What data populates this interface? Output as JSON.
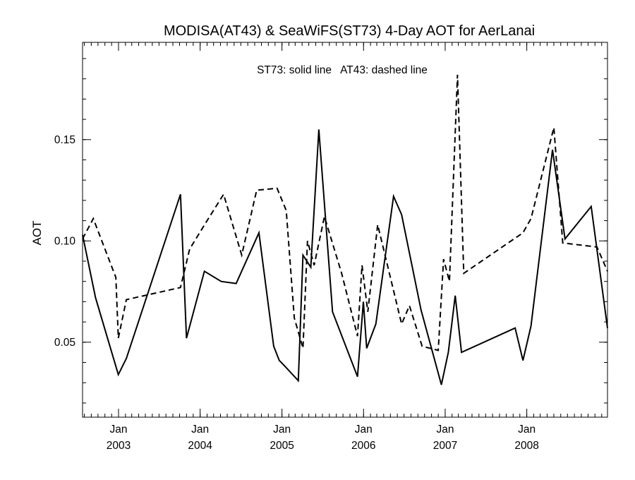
{
  "chart_data": {
    "type": "line",
    "title": "MODISA(AT43) & SeaWiFS(ST73) 4-Day AOT for AerLanai",
    "ylabel": "AOT",
    "xlabel": "",
    "annotation": "ST73: solid line   AT43: dashed line",
    "xlim": [
      "2002-07-24",
      "2008-12-27"
    ],
    "ylim": [
      0.013,
      0.198
    ],
    "y_ticks": [
      {
        "value": 0.05,
        "label": "0.05"
      },
      {
        "value": 0.1,
        "label": "0.10"
      },
      {
        "value": 0.15,
        "label": "0.15"
      }
    ],
    "y_minor_step": 0.01,
    "x_ticks": [
      {
        "date": "2003-01-01",
        "month": "Jan",
        "year": "2003"
      },
      {
        "date": "2004-01-01",
        "month": "Jan",
        "year": "2004"
      },
      {
        "date": "2005-01-01",
        "month": "Jan",
        "year": "2005"
      },
      {
        "date": "2006-01-01",
        "month": "Jan",
        "year": "2006"
      },
      {
        "date": "2007-01-01",
        "month": "Jan",
        "year": "2007"
      },
      {
        "date": "2008-01-01",
        "month": "Jan",
        "year": "2008"
      }
    ],
    "series": [
      {
        "key": "ST73",
        "style": "solid",
        "color": "#000000",
        "points": [
          [
            "2002-07-24",
            0.103
          ],
          [
            "2002-09-20",
            0.072
          ],
          [
            "2002-12-31",
            0.034
          ],
          [
            "2003-02-05",
            0.042
          ],
          [
            "2003-10-05",
            0.123
          ],
          [
            "2003-11-01",
            0.052
          ],
          [
            "2004-01-20",
            0.085
          ],
          [
            "2004-04-04",
            0.08
          ],
          [
            "2004-06-10",
            0.079
          ],
          [
            "2004-09-20",
            0.104
          ],
          [
            "2004-11-25",
            0.048
          ],
          [
            "2004-12-20",
            0.041
          ],
          [
            "2005-01-15",
            0.038
          ],
          [
            "2005-03-15",
            0.031
          ],
          [
            "2005-04-05",
            0.093
          ],
          [
            "2005-05-10",
            0.087
          ],
          [
            "2005-06-15",
            0.155
          ],
          [
            "2005-08-15",
            0.065
          ],
          [
            "2005-12-05",
            0.033
          ],
          [
            "2005-12-31",
            0.07
          ],
          [
            "2006-01-15",
            0.047
          ],
          [
            "2006-02-25",
            0.059
          ],
          [
            "2006-05-15",
            0.122
          ],
          [
            "2006-06-20",
            0.113
          ],
          [
            "2006-09-15",
            0.066
          ],
          [
            "2006-12-15",
            0.029
          ],
          [
            "2007-01-15",
            0.045
          ],
          [
            "2007-02-15",
            0.073
          ],
          [
            "2007-03-15",
            0.045
          ],
          [
            "2007-11-10",
            0.057
          ],
          [
            "2007-12-15",
            0.041
          ],
          [
            "2008-01-20",
            0.058
          ],
          [
            "2008-04-25",
            0.145
          ],
          [
            "2008-06-20",
            0.101
          ],
          [
            "2008-10-15",
            0.117
          ],
          [
            "2008-12-27",
            0.057
          ]
        ]
      },
      {
        "key": "AT43",
        "style": "dashed",
        "color": "#000000",
        "points": [
          [
            "2002-07-24",
            0.101
          ],
          [
            "2002-09-10",
            0.111
          ],
          [
            "2002-12-20",
            0.082
          ],
          [
            "2002-12-31",
            0.052
          ],
          [
            "2003-02-05",
            0.071
          ],
          [
            "2003-10-05",
            0.077
          ],
          [
            "2003-11-15",
            0.096
          ],
          [
            "2004-02-01",
            0.11
          ],
          [
            "2004-04-15",
            0.123
          ],
          [
            "2004-07-05",
            0.093
          ],
          [
            "2004-09-10",
            0.125
          ],
          [
            "2004-12-10",
            0.126
          ],
          [
            "2005-01-20",
            0.115
          ],
          [
            "2005-02-25",
            0.062
          ],
          [
            "2005-04-05",
            0.047
          ],
          [
            "2005-04-25",
            0.1
          ],
          [
            "2005-05-25",
            0.088
          ],
          [
            "2005-07-10",
            0.112
          ],
          [
            "2005-09-25",
            0.084
          ],
          [
            "2005-12-05",
            0.053
          ],
          [
            "2005-12-25",
            0.088
          ],
          [
            "2006-01-20",
            0.065
          ],
          [
            "2006-03-05",
            0.108
          ],
          [
            "2006-06-20",
            0.059
          ],
          [
            "2006-07-25",
            0.068
          ],
          [
            "2006-09-20",
            0.048
          ],
          [
            "2006-12-01",
            0.046
          ],
          [
            "2006-12-25",
            0.091
          ],
          [
            "2007-01-20",
            0.08
          ],
          [
            "2007-02-25",
            0.182
          ],
          [
            "2007-03-25",
            0.084
          ],
          [
            "2007-12-15",
            0.104
          ],
          [
            "2008-01-20",
            0.111
          ],
          [
            "2008-05-01",
            0.156
          ],
          [
            "2008-06-10",
            0.099
          ],
          [
            "2008-11-10",
            0.097
          ],
          [
            "2008-12-27",
            0.085
          ]
        ]
      }
    ]
  }
}
